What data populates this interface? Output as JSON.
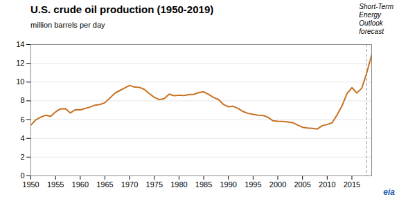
{
  "chart_data": {
    "type": "line",
    "title": "U.S. crude oil production (1950-2019)",
    "subtitle": "million barrels per day",
    "color": "#C87020",
    "x": [
      1950,
      1951,
      1952,
      1953,
      1954,
      1955,
      1956,
      1957,
      1958,
      1959,
      1960,
      1961,
      1962,
      1963,
      1964,
      1965,
      1966,
      1967,
      1968,
      1969,
      1970,
      1971,
      1972,
      1973,
      1974,
      1975,
      1976,
      1977,
      1978,
      1979,
      1980,
      1981,
      1982,
      1983,
      1984,
      1985,
      1986,
      1987,
      1988,
      1989,
      1990,
      1991,
      1992,
      1993,
      1994,
      1995,
      1996,
      1997,
      1998,
      1999,
      2000,
      2001,
      2002,
      2003,
      2004,
      2005,
      2006,
      2007,
      2008,
      2009,
      2010,
      2011,
      2012,
      2013,
      2014,
      2015,
      2016,
      2017,
      2018,
      2019
    ],
    "values": [
      5.41,
      5.97,
      6.26,
      6.46,
      6.34,
      6.81,
      7.15,
      7.17,
      6.71,
      7.05,
      7.04,
      7.18,
      7.34,
      7.54,
      7.61,
      7.8,
      8.3,
      8.81,
      9.1,
      9.37,
      9.64,
      9.46,
      9.44,
      9.21,
      8.77,
      8.37,
      8.13,
      8.24,
      8.71,
      8.55,
      8.6,
      8.57,
      8.65,
      8.69,
      8.88,
      8.97,
      8.68,
      8.35,
      8.14,
      7.61,
      7.36,
      7.42,
      7.17,
      6.85,
      6.66,
      6.56,
      6.47,
      6.45,
      6.25,
      5.88,
      5.82,
      5.8,
      5.75,
      5.68,
      5.42,
      5.18,
      5.1,
      5.06,
      5.0,
      5.35,
      5.48,
      5.66,
      6.5,
      7.46,
      8.76,
      9.41,
      8.83,
      9.35,
      10.96,
      12.9
    ],
    "xlim": [
      1950,
      2019
    ],
    "xticks": [
      1950,
      1955,
      1960,
      1965,
      1970,
      1975,
      1980,
      1985,
      1990,
      1995,
      2000,
      2005,
      2010,
      2015
    ],
    "ylim": [
      0,
      14
    ],
    "yticks": [
      0,
      2,
      4,
      6,
      8,
      10,
      12,
      14
    ],
    "grid": "y",
    "annotations": [
      {
        "type": "vline",
        "x": 2018,
        "line_style": "dashed",
        "label": "Short-Term\nEnergy\nOutlook\nforecast"
      },
      {
        "text": "eia",
        "color": "#2a5ea8"
      }
    ]
  }
}
